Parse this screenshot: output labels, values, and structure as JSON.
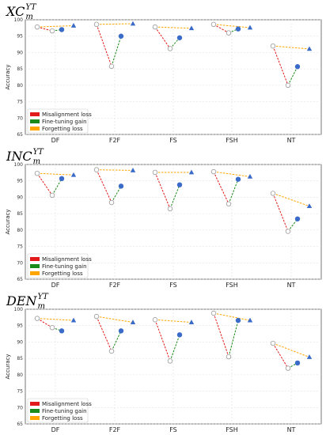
{
  "colors": {
    "misalignment": "#e31a1c",
    "finetune": "#1a8a1a",
    "forgetting": "#ffa500",
    "marker": "#3a6bc9"
  },
  "chart_data": [
    {
      "type": "scatter",
      "title_base": "XC",
      "title_sup": "YT",
      "title_sub": "m",
      "ylabel": "Accuracy",
      "ylim": [
        65,
        100
      ],
      "yticks": [
        65,
        70,
        75,
        80,
        85,
        90,
        95,
        100
      ],
      "grid": true,
      "legend_position": "bottom-left",
      "legend": [
        "Misalignment loss",
        "Fine-tuning gain",
        "Forgetting loss"
      ],
      "categories": [
        "DF",
        "F2F",
        "FS",
        "FSH",
        "NT"
      ],
      "points": [
        {
          "start": 97.8,
          "low": 96.6,
          "ft": 97.0,
          "fg": 98.2
        },
        {
          "start": 98.6,
          "low": 85.8,
          "ft": 95.0,
          "fg": 98.8
        },
        {
          "start": 97.8,
          "low": 91.2,
          "ft": 94.5,
          "fg": 97.4
        },
        {
          "start": 98.6,
          "low": 96.0,
          "ft": 97.2,
          "fg": 97.6
        },
        {
          "start": 92.0,
          "low": 80.0,
          "ft": 85.7,
          "fg": 91.1
        }
      ]
    },
    {
      "type": "scatter",
      "title_base": "INC",
      "title_sup": "YT",
      "title_sub": "m",
      "ylabel": "Accuracy",
      "ylim": [
        65,
        100
      ],
      "yticks": [
        65,
        70,
        75,
        80,
        85,
        90,
        95,
        100
      ],
      "grid": true,
      "legend_position": "bottom-left",
      "legend": [
        "Misalignment loss",
        "Fine-tuning gain",
        "Forgetting loss"
      ],
      "categories": [
        "DF",
        "F2F",
        "FS",
        "FSH",
        "NT"
      ],
      "points": [
        {
          "start": 97.3,
          "low": 90.6,
          "ft": 95.7,
          "fg": 96.8
        },
        {
          "start": 98.4,
          "low": 88.4,
          "ft": 93.4,
          "fg": 98.2
        },
        {
          "start": 97.6,
          "low": 86.5,
          "ft": 93.8,
          "fg": 97.6
        },
        {
          "start": 97.8,
          "low": 88.0,
          "ft": 95.5,
          "fg": 96.3
        },
        {
          "start": 91.2,
          "low": 79.6,
          "ft": 83.4,
          "fg": 87.3
        }
      ]
    },
    {
      "type": "scatter",
      "title_base": "DEN",
      "title_sup": "YT",
      "title_sub": "m",
      "ylabel": "Accuracy",
      "ylim": [
        65,
        100
      ],
      "yticks": [
        65,
        70,
        75,
        80,
        85,
        90,
        95,
        100
      ],
      "grid": true,
      "legend_position": "bottom-left",
      "legend": [
        "Misalignment loss",
        "Fine-tuning gain",
        "Forgetting loss"
      ],
      "categories": [
        "DF",
        "F2F",
        "FS",
        "FSH",
        "NT"
      ],
      "points": [
        {
          "start": 97.2,
          "low": 94.4,
          "ft": 93.4,
          "fg": 96.6
        },
        {
          "start": 97.8,
          "low": 87.2,
          "ft": 93.4,
          "fg": 96.0
        },
        {
          "start": 96.8,
          "low": 84.2,
          "ft": 92.2,
          "fg": 96.0
        },
        {
          "start": 98.8,
          "low": 85.5,
          "ft": 96.6,
          "fg": 96.6
        },
        {
          "start": 89.6,
          "low": 82.0,
          "ft": 83.6,
          "fg": 85.4
        }
      ]
    }
  ]
}
